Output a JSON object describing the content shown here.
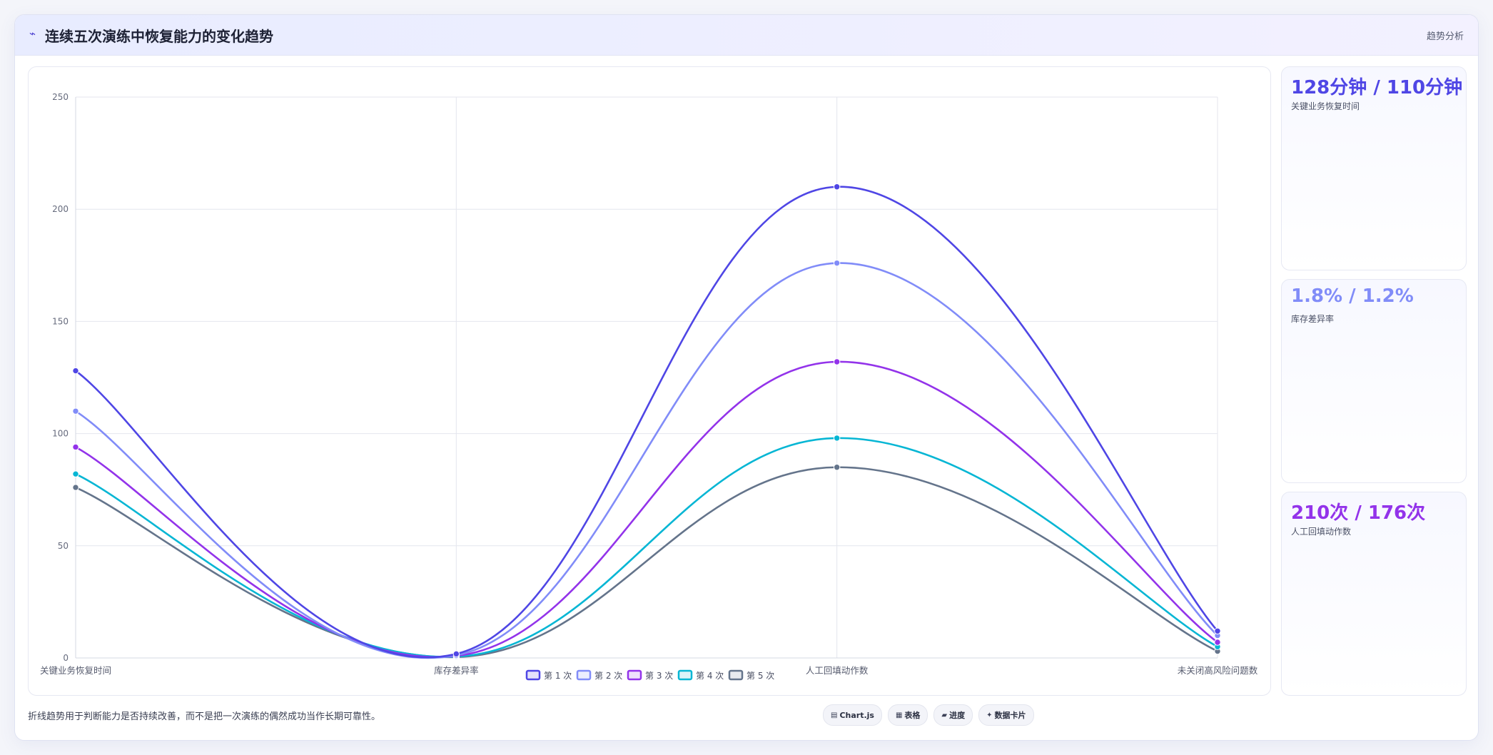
{
  "header": {
    "icon": "chart-line-icon",
    "title": "连续五次演练中恢复能力的变化趋势",
    "tag": "趋势分析"
  },
  "chart_data": {
    "type": "line",
    "categories": [
      "关键业务恢复时间",
      "库存差异率",
      "人工回填动作数",
      "未关闭高风险问题数"
    ],
    "ylim": [
      0,
      250
    ],
    "yticks": [
      0,
      50,
      100,
      150,
      200,
      250
    ],
    "grid": true,
    "legend_position": "bottom",
    "series": [
      {
        "name": "第 1 次",
        "color": "#4f46e5",
        "values": [
          128,
          1.8,
          210,
          12
        ]
      },
      {
        "name": "第 2 次",
        "color": "#818cf8",
        "values": [
          110,
          1.2,
          176,
          10
        ]
      },
      {
        "name": "第 3 次",
        "color": "#9333ea",
        "values": [
          94,
          0.9,
          132,
          7
        ]
      },
      {
        "name": "第 4 次",
        "color": "#06b6d4",
        "values": [
          82,
          0.6,
          98,
          5
        ]
      },
      {
        "name": "第 5 次",
        "color": "#64748b",
        "values": [
          76,
          0.4,
          85,
          3
        ]
      }
    ]
  },
  "stats": [
    {
      "value": "128分钟 / 110分钟",
      "label": "关键业务恢复时间",
      "color": "#4f46e5"
    },
    {
      "value": "1.8% / 1.2%",
      "label": "库存差异率",
      "color": "#818cf8"
    },
    {
      "value": "210次 / 176次",
      "label": "人工回填动作数",
      "color": "#9333ea"
    }
  ],
  "footer": {
    "note": "折线趋势用于判断能力是否持续改善，而不是把一次演练的偶然成功当作长期可靠性。",
    "pills": [
      {
        "icon": "▤",
        "label": "Chart.js"
      },
      {
        "icon": "▦",
        "label": "表格"
      },
      {
        "icon": "▰",
        "label": "进度"
      },
      {
        "icon": "✦",
        "label": "数据卡片"
      }
    ]
  }
}
